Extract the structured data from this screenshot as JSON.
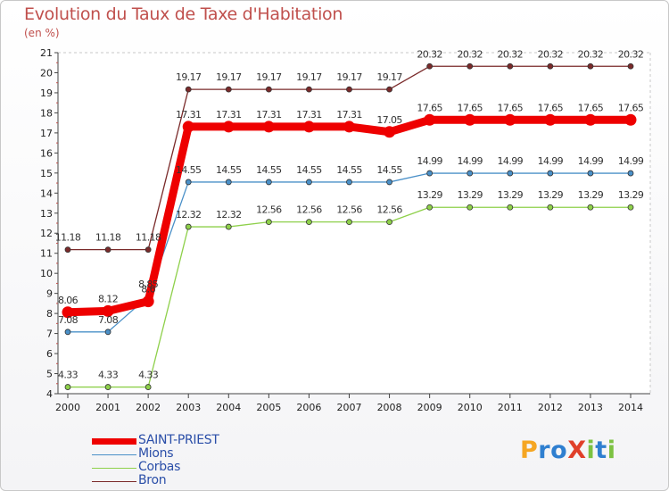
{
  "chart_data": {
    "type": "line",
    "title": "Evolution du Taux de Taxe d'Habitation",
    "ylabel": "(en %)",
    "xlabel": "",
    "ylim": [
      4,
      21
    ],
    "yticks": [
      "4",
      "5",
      "6",
      "7",
      "8",
      "9",
      "10",
      "11",
      "12",
      "13",
      "14",
      "15",
      "16",
      "17",
      "18",
      "19",
      "20",
      "21"
    ],
    "categories": [
      "2000",
      "2001",
      "2002",
      "2003",
      "2004",
      "2005",
      "2006",
      "2007",
      "2008",
      "2009",
      "2010",
      "2011",
      "2012",
      "2013",
      "2014"
    ],
    "series": [
      {
        "name": "Bron",
        "color": "#7a2a2a",
        "values": [
          11.18,
          11.18,
          11.18,
          19.17,
          19.17,
          19.17,
          19.17,
          19.17,
          19.17,
          20.32,
          20.32,
          20.32,
          20.32,
          20.32,
          20.32
        ],
        "labels": [
          "11.18",
          "11.18",
          "11.18",
          "19.17",
          "19.17",
          "19.17",
          "19.17",
          "19.17",
          "19.17",
          "20.32",
          "20.32",
          "20.32",
          "20.32",
          "20.32",
          "20.32"
        ]
      },
      {
        "name": "Mions",
        "color": "#4a90c8",
        "values": [
          7.08,
          7.08,
          8.85,
          14.55,
          14.55,
          14.55,
          14.55,
          14.55,
          14.55,
          14.99,
          14.99,
          14.99,
          14.99,
          14.99,
          14.99
        ],
        "labels": [
          "7.08",
          "7.08",
          "8.85",
          "14.55",
          "14.55",
          "14.55",
          "14.55",
          "14.55",
          "14.55",
          "14.99",
          "14.99",
          "14.99",
          "14.99",
          "14.99",
          "14.99"
        ]
      },
      {
        "name": "Corbas",
        "color": "#8ed04a",
        "values": [
          4.33,
          4.33,
          4.33,
          12.32,
          12.32,
          12.56,
          12.56,
          12.56,
          12.56,
          13.29,
          13.29,
          13.29,
          13.29,
          13.29,
          13.29
        ],
        "labels": [
          "4.33",
          "4.33",
          "4.33",
          "12.32",
          "12.32",
          "12.56",
          "12.56",
          "12.56",
          "12.56",
          "13.29",
          "13.29",
          "13.29",
          "13.29",
          "13.29",
          "13.29"
        ]
      },
      {
        "name": "SAINT-PRIEST",
        "color": "#ee0000",
        "values": [
          8.06,
          8.12,
          8.6,
          17.31,
          17.31,
          17.31,
          17.31,
          17.31,
          17.05,
          17.65,
          17.65,
          17.65,
          17.65,
          17.65,
          17.65
        ],
        "labels": [
          "8.06",
          "8.12",
          "8.6",
          "17.31",
          "17.31",
          "17.31",
          "17.31",
          "17.31",
          "17.05",
          "17.65",
          "17.65",
          "17.65",
          "17.65",
          "17.65",
          "17.65"
        ]
      }
    ],
    "legend": [
      "SAINT-PRIEST",
      "Mions",
      "Corbas",
      "Bron"
    ],
    "legend_position": "bottom-left"
  },
  "branding": {
    "logo_text": "ProXiti",
    "logo_letters": [
      "P",
      "r",
      "o",
      "X",
      "i",
      "t",
      "i"
    ],
    "logo_colors": [
      "#f5a623",
      "#2f7fd0",
      "#2f7fd0",
      "#e0402a",
      "#7cc242",
      "#2f7fd0",
      "#7cc242"
    ]
  }
}
